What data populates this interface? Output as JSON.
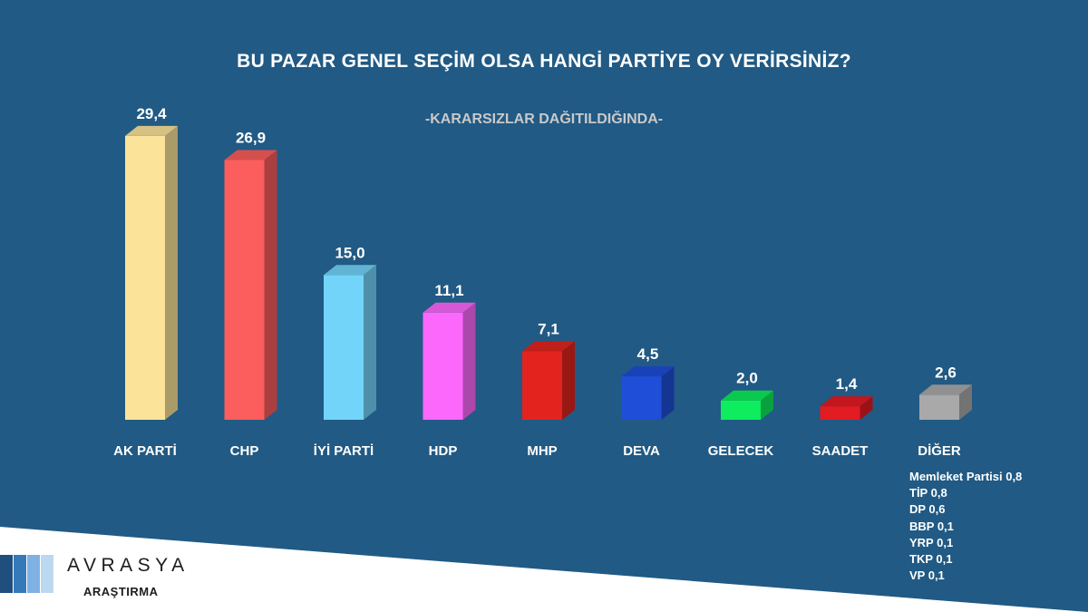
{
  "chart_data": {
    "type": "bar",
    "title": "BU PAZAR GENEL SEÇİM OLSA HANGİ PARTİYE OY VERİRSİNİZ?",
    "subtitle": "-KARARSIZLAR DAĞITILDIĞINDA-",
    "categories": [
      "AK PARTİ",
      "CHP",
      "İYİ PARTİ",
      "HDP",
      "MHP",
      "DEVA",
      "GELECEK",
      "SAADET",
      "DİĞER"
    ],
    "values": [
      29.4,
      26.9,
      15.0,
      11.1,
      7.1,
      4.5,
      2.0,
      1.4,
      2.6
    ],
    "value_labels": [
      "29,4",
      "26,9",
      "15,0",
      "11,1",
      "7,1",
      "4,5",
      "2,0",
      "1,4",
      "2,6"
    ],
    "colors": [
      "#fbe49a",
      "#fc5d5d",
      "#72d4f8",
      "#fd68fc",
      "#e3241e",
      "#1f4ed8",
      "#0ded5d",
      "#e31b22",
      "#a9a9a9"
    ],
    "xlabel": "",
    "ylabel": "",
    "grid": false,
    "legend": "none"
  },
  "others": [
    "Memleket Partisi 0,8",
    "TİP 0,8",
    "DP 0,6",
    "BBP 0,1",
    "YRP 0,1",
    "TKP 0,1",
    "VP 0,1"
  ],
  "logo": {
    "name": "AVRASYA",
    "sub": "ARAŞTIRMA",
    "colors": [
      "#1f4f7c",
      "#3679b8",
      "#7fb2e2",
      "#bcd8f1"
    ]
  },
  "theme": {
    "background": "#215a84",
    "wedge": "#ffffff"
  }
}
